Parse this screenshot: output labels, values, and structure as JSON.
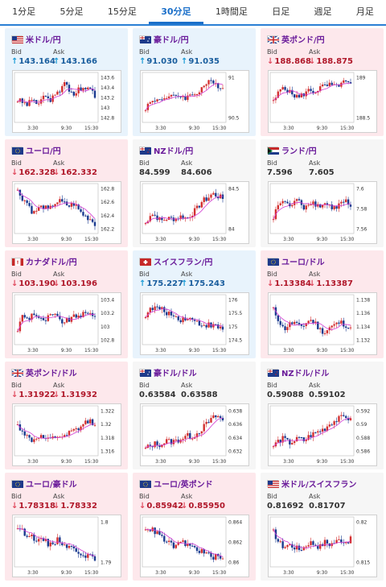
{
  "tabs": [
    {
      "label": "1分足",
      "active": false
    },
    {
      "label": "5分足",
      "active": false
    },
    {
      "label": "15分足",
      "active": false
    },
    {
      "label": "30分足",
      "active": true
    },
    {
      "label": "1時間足",
      "active": false
    },
    {
      "label": "日足",
      "active": false
    },
    {
      "label": "週足",
      "active": false
    },
    {
      "label": "月足",
      "active": false
    }
  ],
  "labels": {
    "bid": "Bid",
    "ask": "Ask"
  },
  "colors": {
    "up_bg": "#e8f3fc",
    "down_bg": "#fde8ec",
    "up_candle": "#d32f2f",
    "down_candle": "#1a3a8f",
    "ma_line": "#d23bd2"
  },
  "cards": [
    {
      "pair": "米ドル/円",
      "flag": "us",
      "trend": "up",
      "bid": "143.164",
      "ask": "143.166",
      "x_ticks": [
        "3:30",
        "9:30",
        "15:30"
      ],
      "y_ticks": [
        "143.6",
        "143.4",
        "143.2",
        "143",
        "142.8"
      ]
    },
    {
      "pair": "豪ドル/円",
      "flag": "au",
      "trend": "up",
      "bid": "91.030",
      "ask": "91.035",
      "x_ticks": [
        "3:30",
        "9:30",
        "15:30"
      ],
      "y_ticks": [
        "91",
        "90.5"
      ]
    },
    {
      "pair": "英ポンド/円",
      "flag": "gb",
      "trend": "down",
      "bid": "188.868",
      "ask": "188.875",
      "x_ticks": [
        "3:30",
        "9:30",
        "15:30"
      ],
      "y_ticks": [
        "189",
        "188.5"
      ]
    },
    {
      "pair": "ユーロ/円",
      "flag": "eu",
      "trend": "down",
      "bid": "162.328",
      "ask": "162.332",
      "x_ticks": [
        "3:30",
        "9:30",
        "15:30"
      ],
      "y_ticks": [
        "162.8",
        "162.6",
        "162.4",
        "162.2"
      ]
    },
    {
      "pair": "NZドル/円",
      "flag": "nz",
      "trend": "flat",
      "bid": "84.599",
      "ask": "84.606",
      "x_ticks": [
        "3:30",
        "9:30",
        "15:30"
      ],
      "y_ticks": [
        "84.5",
        "84"
      ]
    },
    {
      "pair": "ランド/円",
      "flag": "za",
      "trend": "flat",
      "bid": "7.596",
      "ask": "7.605",
      "x_ticks": [
        "3:30",
        "9:30",
        "15:30"
      ],
      "y_ticks": [
        "7.6",
        "7.58",
        "7.56"
      ]
    },
    {
      "pair": "カナダドル/円",
      "flag": "ca",
      "trend": "down",
      "bid": "103.190",
      "ask": "103.196",
      "x_ticks": [
        "3:30",
        "9:30",
        "15:30"
      ],
      "y_ticks": [
        "103.4",
        "103.2",
        "103",
        "102.8"
      ]
    },
    {
      "pair": "スイスフラン/円",
      "flag": "ch",
      "trend": "up",
      "bid": "175.227",
      "ask": "175.243",
      "x_ticks": [
        "3:30",
        "9:30",
        "15:30"
      ],
      "y_ticks": [
        "176",
        "175.5",
        "175",
        "174.5"
      ]
    },
    {
      "pair": "ユーロ/ドル",
      "flag": "eu",
      "trend": "down",
      "bid": "1.13384",
      "ask": "1.13387",
      "x_ticks": [
        "3:30",
        "9:30",
        "15:30"
      ],
      "y_ticks": [
        "1.138",
        "1.136",
        "1.134",
        "1.132"
      ]
    },
    {
      "pair": "英ポンド/ドル",
      "flag": "gb",
      "trend": "down",
      "bid": "1.31922",
      "ask": "1.31932",
      "x_ticks": [
        "3:30",
        "9:30",
        "15:30"
      ],
      "y_ticks": [
        "1.322",
        "1.32",
        "1.318",
        "1.316"
      ]
    },
    {
      "pair": "豪ドル/ドル",
      "flag": "au",
      "trend": "flat",
      "bid": "0.63584",
      "ask": "0.63588",
      "x_ticks": [
        "3:30",
        "9:30",
        "15:30"
      ],
      "y_ticks": [
        "0.638",
        "0.636",
        "0.634",
        "0.632"
      ]
    },
    {
      "pair": "NZドル/ドル",
      "flag": "nz",
      "trend": "flat",
      "bid": "0.59088",
      "ask": "0.59102",
      "x_ticks": [
        "3:30",
        "9:30",
        "15:30"
      ],
      "y_ticks": [
        "0.592",
        "0.59",
        "0.588",
        "0.586"
      ]
    },
    {
      "pair": "ユーロ/豪ドル",
      "flag": "eu",
      "trend": "down",
      "bid": "1.78318",
      "ask": "1.78332",
      "x_ticks": [
        "3:30",
        "9:30",
        "15:30"
      ],
      "y_ticks": [
        "1.8",
        "1.79"
      ]
    },
    {
      "pair": "ユーロ/英ポンド",
      "flag": "eu",
      "trend": "down",
      "bid": "0.85942",
      "ask": "0.85950",
      "x_ticks": [
        "3:30",
        "9:30",
        "15:30"
      ],
      "y_ticks": [
        "0.864",
        "0.862",
        "0.86"
      ]
    },
    {
      "pair": "米ドル/スイスフラン",
      "flag": "us",
      "trend": "flat",
      "bid": "0.81692",
      "ask": "0.81707",
      "x_ticks": [
        "3:30",
        "9:30",
        "15:30"
      ],
      "y_ticks": [
        "0.82",
        "0.815"
      ]
    }
  ]
}
